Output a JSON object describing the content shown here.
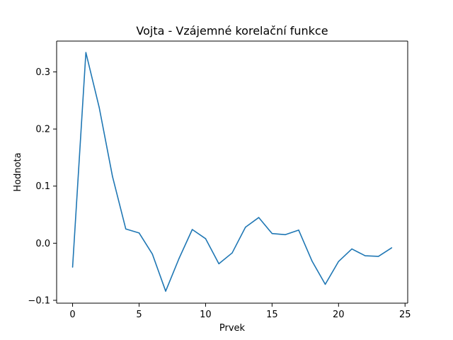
{
  "chart_data": {
    "type": "line",
    "title": "Vojta - Vzájemné korelační funkce",
    "xlabel": "Prvek",
    "ylabel": "Hodnota",
    "xlim": [
      -1.2,
      25.2
    ],
    "ylim": [
      -0.105,
      0.354
    ],
    "xticks": [
      0,
      5,
      10,
      15,
      20,
      25
    ],
    "yticks": [
      -0.1,
      0.0,
      0.1,
      0.2,
      0.3
    ],
    "xtick_labels": [
      "0",
      "5",
      "10",
      "15",
      "20",
      "25"
    ],
    "ytick_labels": [
      "−0.1",
      "0.0",
      "0.1",
      "0.2",
      "0.3"
    ],
    "grid": false,
    "series": [
      {
        "color": "#1f77b4",
        "x": [
          0,
          1,
          2,
          3,
          4,
          5,
          6,
          7,
          8,
          9,
          10,
          11,
          12,
          13,
          14,
          15,
          16,
          17,
          18,
          19,
          20,
          21,
          22,
          23,
          24
        ],
        "y": [
          -0.042,
          0.334,
          0.238,
          0.117,
          0.025,
          0.018,
          -0.019,
          -0.084,
          -0.027,
          0.024,
          0.008,
          -0.036,
          -0.017,
          0.028,
          0.045,
          0.017,
          0.015,
          0.023,
          -0.031,
          -0.072,
          -0.032,
          -0.01,
          -0.022,
          -0.023,
          -0.008
        ]
      }
    ]
  }
}
